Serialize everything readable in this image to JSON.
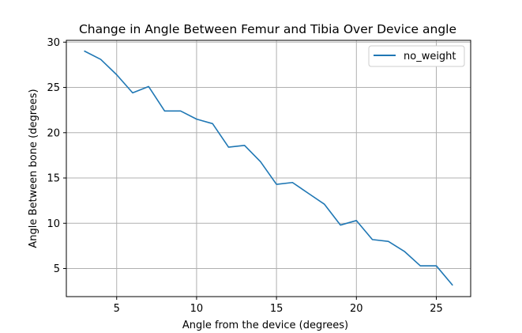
{
  "chart_data": {
    "type": "line",
    "title": "Change in Angle Between Femur and Tibia Over Device angle",
    "xlabel": "Angle from the device (degrees)",
    "ylabel": "Angle Between bone (degrees)",
    "xlim": [
      1.85,
      27.15
    ],
    "ylim": [
      1.9,
      30.2
    ],
    "x_ticks": [
      5,
      10,
      15,
      20,
      25
    ],
    "y_ticks": [
      5,
      10,
      15,
      20,
      25,
      30
    ],
    "grid": true,
    "legend_position": "top-right",
    "series": [
      {
        "name": "no_weight",
        "color": "#1f77b4",
        "x": [
          3,
          4,
          5,
          6,
          7,
          8,
          9,
          10,
          11,
          12,
          13,
          14,
          15,
          16,
          17,
          18,
          19,
          20,
          21,
          22,
          23,
          24,
          25,
          26
        ],
        "y": [
          29.0,
          28.1,
          26.4,
          24.4,
          25.1,
          22.4,
          22.4,
          21.5,
          21.0,
          18.4,
          18.6,
          16.8,
          14.3,
          14.5,
          13.3,
          12.1,
          9.8,
          10.3,
          8.2,
          8.0,
          6.9,
          5.3,
          5.3,
          3.2
        ]
      }
    ]
  }
}
